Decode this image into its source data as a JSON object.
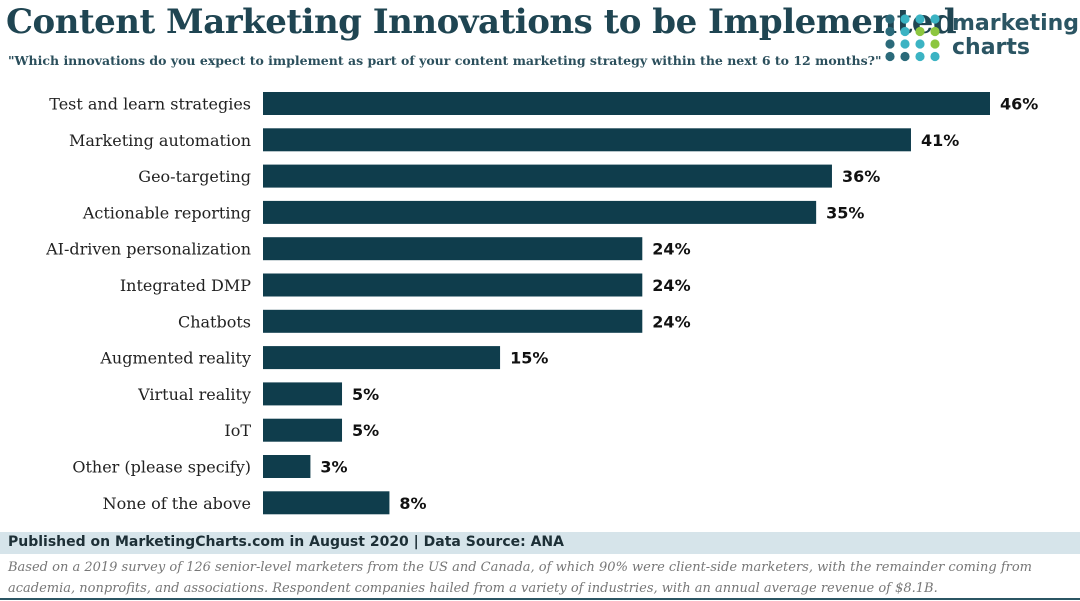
{
  "header": {
    "title": "Content Marketing Innovations to be Implemented",
    "subtitle": "\"Which innovations do you expect to implement as part of your content marketing strategy within the next 6 to 12 months?\""
  },
  "logo": {
    "line1": "marketing",
    "line2": "charts"
  },
  "colors": {
    "bar": "#0f3d4c",
    "logo_dark": "#2b6a7a",
    "logo_teal": "#3bb3c3",
    "logo_green": "#8cc63f"
  },
  "chart_data": {
    "type": "bar",
    "orientation": "horizontal",
    "title": "Content Marketing Innovations to be Implemented",
    "categories": [
      "Test and learn strategies",
      "Marketing automation",
      "Geo-targeting",
      "Actionable reporting",
      "AI-driven personalization",
      "Integrated DMP",
      "Chatbots",
      "Augmented reality",
      "Virtual reality",
      "IoT",
      "Other (please specify)",
      "None of the above"
    ],
    "values": [
      46,
      41,
      36,
      35,
      24,
      24,
      24,
      15,
      5,
      5,
      3,
      8
    ],
    "value_labels": [
      "46%",
      "41%",
      "36%",
      "35%",
      "24%",
      "24%",
      "24%",
      "15%",
      "5%",
      "5%",
      "3%",
      "8%"
    ],
    "xlim": [
      0,
      46
    ],
    "grid": false,
    "legend": "none"
  },
  "footer": {
    "published": "Published on MarketingCharts.com in August 2020 | Data Source: ANA",
    "note": "Based on a 2019 survey of 126 senior-level marketers from the US and Canada, of which 90% were client-side marketers, with the remainder coming from academia, nonprofits, and associations. Respondent companies hailed from a variety of industries, with an annual average revenue of $8.1B."
  }
}
